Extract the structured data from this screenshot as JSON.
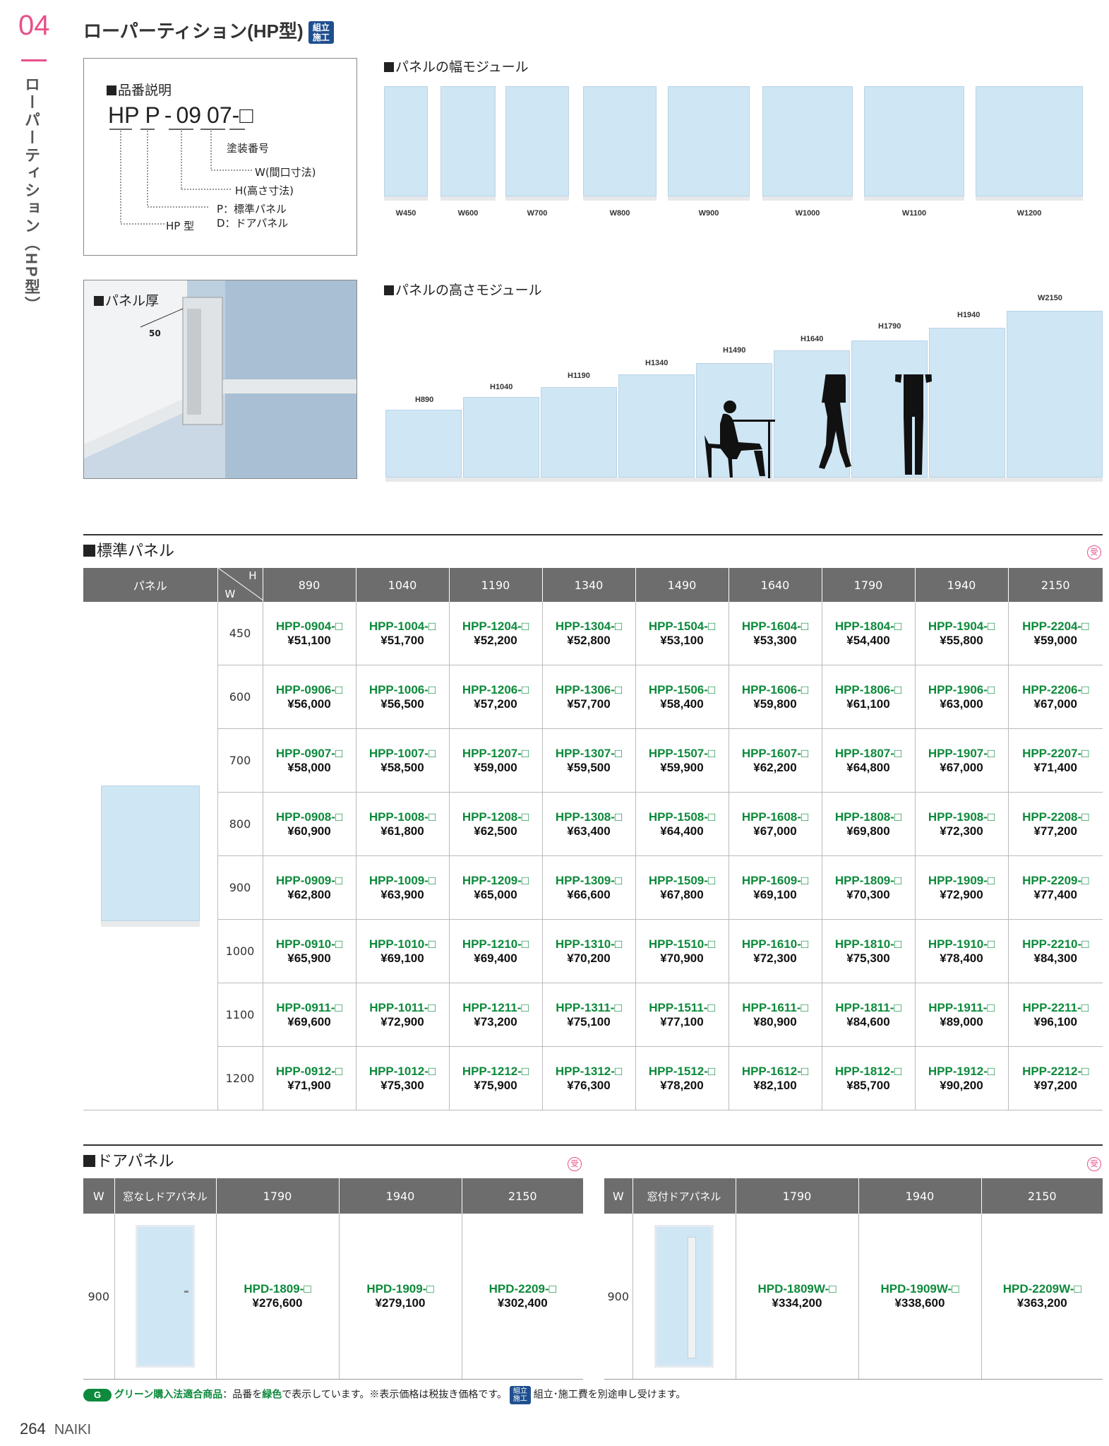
{
  "header": {
    "chapter": "04",
    "side_title": "ローパーティション（HP型）",
    "title": "ローパーティション(HP型)",
    "badge": "組立施工"
  },
  "part_number": {
    "heading": "品番説明",
    "code_hp": "HP",
    "code_p": "P",
    "code_dash": "-",
    "code_09": "09",
    "code_07": "07-",
    "code_box": "□",
    "l_paint": "塗装番号",
    "l_w": "W(間口寸法)",
    "l_h": "H(高さ寸法)",
    "l_p": "P：標準パネル",
    "l_d": "D：ドアパネル",
    "l_hp": "HP 型"
  },
  "thickness": {
    "heading": "パネル厚",
    "value": "50"
  },
  "width_module": {
    "heading": "パネルの幅モジュール",
    "labels": [
      "W450",
      "W600",
      "W700",
      "W800",
      "W900",
      "W1000",
      "W1100",
      "W1200"
    ]
  },
  "height_module": {
    "heading": "パネルの高さモジュール",
    "labels": [
      "H890",
      "H1040",
      "H1190",
      "H1340",
      "H1490",
      "H1640",
      "H1790",
      "H1940",
      "W2150"
    ]
  },
  "standard": {
    "heading": "標準パネル",
    "uke": "受",
    "col_panel": "パネル",
    "col_h": "H",
    "col_w": "W",
    "heights": [
      "890",
      "1040",
      "1190",
      "1340",
      "1490",
      "1640",
      "1790",
      "1940",
      "2150"
    ],
    "rows": [
      {
        "w": "450",
        "codes": [
          "HPP-0904-□",
          "HPP-1004-□",
          "HPP-1204-□",
          "HPP-1304-□",
          "HPP-1504-□",
          "HPP-1604-□",
          "HPP-1804-□",
          "HPP-1904-□",
          "HPP-2204-□"
        ],
        "prices": [
          "¥51,100",
          "¥51,700",
          "¥52,200",
          "¥52,800",
          "¥53,100",
          "¥53,300",
          "¥54,400",
          "¥55,800",
          "¥59,000"
        ]
      },
      {
        "w": "600",
        "codes": [
          "HPP-0906-□",
          "HPP-1006-□",
          "HPP-1206-□",
          "HPP-1306-□",
          "HPP-1506-□",
          "HPP-1606-□",
          "HPP-1806-□",
          "HPP-1906-□",
          "HPP-2206-□"
        ],
        "prices": [
          "¥56,000",
          "¥56,500",
          "¥57,200",
          "¥57,700",
          "¥58,400",
          "¥59,800",
          "¥61,100",
          "¥63,000",
          "¥67,000"
        ]
      },
      {
        "w": "700",
        "codes": [
          "HPP-0907-□",
          "HPP-1007-□",
          "HPP-1207-□",
          "HPP-1307-□",
          "HPP-1507-□",
          "HPP-1607-□",
          "HPP-1807-□",
          "HPP-1907-□",
          "HPP-2207-□"
        ],
        "prices": [
          "¥58,000",
          "¥58,500",
          "¥59,000",
          "¥59,500",
          "¥59,900",
          "¥62,200",
          "¥64,800",
          "¥67,000",
          "¥71,400"
        ]
      },
      {
        "w": "800",
        "codes": [
          "HPP-0908-□",
          "HPP-1008-□",
          "HPP-1208-□",
          "HPP-1308-□",
          "HPP-1508-□",
          "HPP-1608-□",
          "HPP-1808-□",
          "HPP-1908-□",
          "HPP-2208-□"
        ],
        "prices": [
          "¥60,900",
          "¥61,800",
          "¥62,500",
          "¥63,400",
          "¥64,400",
          "¥67,000",
          "¥69,800",
          "¥72,300",
          "¥77,200"
        ]
      },
      {
        "w": "900",
        "codes": [
          "HPP-0909-□",
          "HPP-1009-□",
          "HPP-1209-□",
          "HPP-1309-□",
          "HPP-1509-□",
          "HPP-1609-□",
          "HPP-1809-□",
          "HPP-1909-□",
          "HPP-2209-□"
        ],
        "prices": [
          "¥62,800",
          "¥63,900",
          "¥65,000",
          "¥66,600",
          "¥67,800",
          "¥69,100",
          "¥70,300",
          "¥72,900",
          "¥77,400"
        ]
      },
      {
        "w": "1000",
        "codes": [
          "HPP-0910-□",
          "HPP-1010-□",
          "HPP-1210-□",
          "HPP-1310-□",
          "HPP-1510-□",
          "HPP-1610-□",
          "HPP-1810-□",
          "HPP-1910-□",
          "HPP-2210-□"
        ],
        "prices": [
          "¥65,900",
          "¥69,100",
          "¥69,400",
          "¥70,200",
          "¥70,900",
          "¥72,300",
          "¥75,300",
          "¥78,400",
          "¥84,300"
        ]
      },
      {
        "w": "1100",
        "codes": [
          "HPP-0911-□",
          "HPP-1011-□",
          "HPP-1211-□",
          "HPP-1311-□",
          "HPP-1511-□",
          "HPP-1611-□",
          "HPP-1811-□",
          "HPP-1911-□",
          "HPP-2211-□"
        ],
        "prices": [
          "¥69,600",
          "¥72,900",
          "¥73,200",
          "¥75,100",
          "¥77,100",
          "¥80,900",
          "¥84,600",
          "¥89,000",
          "¥96,100"
        ]
      },
      {
        "w": "1200",
        "codes": [
          "HPP-0912-□",
          "HPP-1012-□",
          "HPP-1212-□",
          "HPP-1312-□",
          "HPP-1512-□",
          "HPP-1612-□",
          "HPP-1812-□",
          "HPP-1912-□",
          "HPP-2212-□"
        ],
        "prices": [
          "¥71,900",
          "¥75,300",
          "¥75,900",
          "¥76,300",
          "¥78,200",
          "¥82,100",
          "¥85,700",
          "¥90,200",
          "¥97,200"
        ]
      }
    ]
  },
  "door": {
    "heading": "ドアパネル",
    "uke": "受",
    "left": {
      "col_w": "W",
      "col_type": "窓なしドアパネル",
      "heights": [
        "1790",
        "1940",
        "2150"
      ],
      "w": "900",
      "codes": [
        "HPD-1809-□",
        "HPD-1909-□",
        "HPD-2209-□"
      ],
      "prices": [
        "¥276,600",
        "¥279,100",
        "¥302,400"
      ]
    },
    "right": {
      "col_w": "W",
      "col_type": "窓付ドアパネル",
      "heights": [
        "1790",
        "1940",
        "2150"
      ],
      "w": "900",
      "codes": [
        "HPD-1809W-□",
        "HPD-1909W-□",
        "HPD-2209W-□"
      ],
      "prices": [
        "¥334,200",
        "¥338,600",
        "¥363,200"
      ]
    }
  },
  "footer": {
    "g_mark": "G",
    "green_label": "グリーン購入法適合商品",
    "note_a": "：品番を",
    "note_green": "緑色",
    "note_b": "で表示しています。※表示価格は税抜き価格です。",
    "badge": "組立施工",
    "note_c": "組立･施工費を別途申し受けます。",
    "page": "264",
    "brand": "NAIKI"
  },
  "colors": {
    "accent": "#e8508a",
    "green": "#0d8a3b",
    "panel": "#cfe6f5",
    "header_gray": "#6d6d6d"
  }
}
